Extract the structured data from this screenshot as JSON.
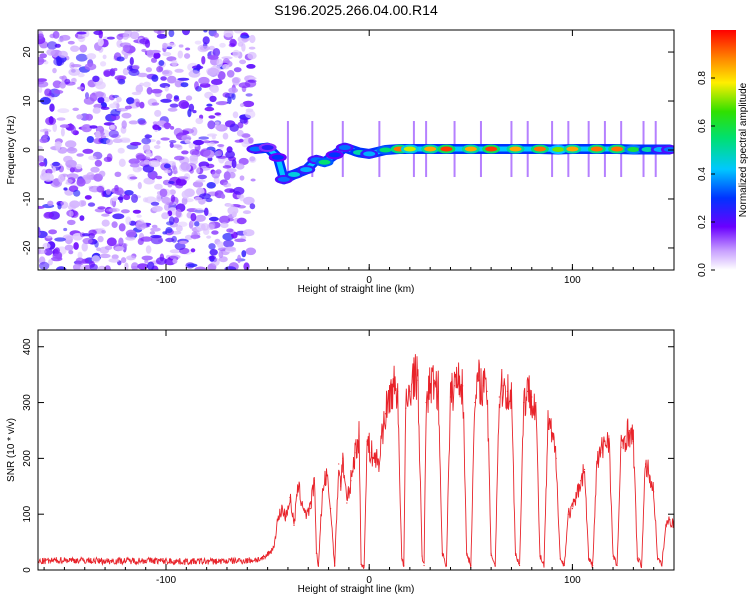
{
  "title": "S196.2025.266.04.00.R14",
  "colors": {
    "snr_line": "#e8232a",
    "noise": "#7a1ff0",
    "frame": "#000000"
  },
  "chart_data": [
    {
      "type": "heatmap",
      "name": "spectrogram",
      "xlabel": "Height of straight line (km)",
      "ylabel": "Frequency (Hz)",
      "xlim": [
        -163,
        150
      ],
      "ylim": [
        -24.5,
        24.5
      ],
      "xticks": [
        -100,
        0,
        100
      ],
      "yticks": [
        -20,
        -10,
        0,
        10,
        20
      ],
      "colorbar": {
        "label": "Normalized spectral amplitude",
        "range": [
          0,
          1
        ],
        "ticks": [
          0.0,
          0.2,
          0.4,
          0.6,
          0.8
        ],
        "tick_labels": [
          "0.0",
          "0.2",
          "0.4",
          "0.6",
          "0.8"
        ],
        "colormap": "rainbow"
      },
      "noise_region_x": [
        -163,
        -57
      ],
      "carrier_track": [
        {
          "x": -56,
          "f": 0.2,
          "amp": 0.35
        },
        {
          "x": -50,
          "f": 0.5,
          "amp": 0.25
        },
        {
          "x": -45,
          "f": -1.5,
          "amp": 0.3
        },
        {
          "x": -42,
          "f": -6.0,
          "amp": 0.35
        },
        {
          "x": -37,
          "f": -5.0,
          "amp": 0.45
        },
        {
          "x": -31,
          "f": -4.0,
          "amp": 0.4
        },
        {
          "x": -26,
          "f": -2.0,
          "amp": 0.35
        },
        {
          "x": -22,
          "f": -2.5,
          "amp": 0.55
        },
        {
          "x": -17,
          "f": -1.0,
          "amp": 0.3
        },
        {
          "x": -12,
          "f": 0.5,
          "amp": 0.35
        },
        {
          "x": -5,
          "f": -0.5,
          "amp": 0.5
        },
        {
          "x": 0,
          "f": -0.8,
          "amp": 0.4
        },
        {
          "x": 8,
          "f": 0.0,
          "amp": 0.55
        },
        {
          "x": 15,
          "f": 0.2,
          "amp": 0.9
        },
        {
          "x": 20,
          "f": 0.2,
          "amp": 0.75
        },
        {
          "x": 30,
          "f": 0.2,
          "amp": 0.85
        },
        {
          "x": 38,
          "f": 0.2,
          "amp": 0.95
        },
        {
          "x": 50,
          "f": 0.2,
          "amp": 0.85
        },
        {
          "x": 60,
          "f": 0.2,
          "amp": 0.95
        },
        {
          "x": 72,
          "f": 0.2,
          "amp": 0.85
        },
        {
          "x": 84,
          "f": 0.2,
          "amp": 0.9
        },
        {
          "x": 93,
          "f": 0.1,
          "amp": 0.7
        },
        {
          "x": 100,
          "f": 0.2,
          "amp": 0.85
        },
        {
          "x": 112,
          "f": 0.2,
          "amp": 0.9
        },
        {
          "x": 122,
          "f": 0.2,
          "amp": 0.9
        },
        {
          "x": 130,
          "f": 0.1,
          "amp": 0.6
        },
        {
          "x": 137,
          "f": 0.1,
          "amp": 0.5
        },
        {
          "x": 143,
          "f": 0.1,
          "amp": 0.4
        },
        {
          "x": 148,
          "f": 0.1,
          "amp": 0.35
        }
      ],
      "sidelobes_x": [
        -40,
        -28,
        -13,
        5,
        22,
        28,
        42,
        55,
        70,
        78,
        90,
        98,
        108,
        116,
        124,
        135,
        141
      ]
    },
    {
      "type": "line",
      "name": "snr",
      "xlabel": "Height of straight line (km)",
      "ylabel": "SNR (10 * v/v)",
      "xlim": [
        -163,
        150
      ],
      "ylim": [
        0,
        430
      ],
      "xticks": [
        -100,
        0,
        100
      ],
      "yticks": [
        0,
        100,
        200,
        300,
        400
      ],
      "series": [
        {
          "name": "SNR",
          "x": [
            -163,
            -150,
            -130,
            -110,
            -90,
            -70,
            -60,
            -52,
            -47,
            -45,
            -43,
            -41,
            -39,
            -37,
            -35,
            -33,
            -31,
            -29,
            -27,
            -26,
            -25,
            -23,
            -21,
            -19,
            -17,
            -15,
            -14,
            -13,
            -11,
            -9,
            -7,
            -5,
            -4,
            -3,
            -1,
            1,
            3,
            5,
            -2.5,
            6,
            8,
            10,
            12,
            14,
            16,
            17,
            18,
            20,
            22,
            24,
            26,
            27,
            28,
            30,
            32,
            34,
            36,
            38,
            40,
            42,
            44,
            46,
            48,
            50,
            52,
            54,
            56,
            58,
            60,
            62,
            64,
            66,
            68,
            70,
            72,
            74,
            76,
            78,
            80,
            82,
            84,
            86,
            88,
            90,
            92,
            94,
            96,
            98,
            100,
            102,
            104,
            106,
            108,
            110,
            112,
            114,
            116,
            118,
            120,
            122,
            124,
            126,
            128,
            130,
            132,
            134,
            136,
            138,
            140,
            142,
            144,
            146,
            148,
            150
          ],
          "values": [
            15,
            18,
            16,
            17,
            15,
            16,
            17,
            20,
            40,
            90,
            110,
            95,
            130,
            80,
            150,
            120,
            100,
            110,
            160,
            30,
            8,
            140,
            170,
            110,
            8,
            190,
            150,
            200,
            120,
            160,
            210,
            240,
            10,
            8,
            230,
            210,
            200,
            190,
            8,
            240,
            280,
            310,
            330,
            320,
            20,
            8,
            290,
            320,
            350,
            340,
            25,
            8,
            300,
            330,
            340,
            320,
            30,
            8,
            310,
            330,
            350,
            330,
            30,
            8,
            300,
            340,
            330,
            320,
            30,
            8,
            310,
            330,
            320,
            310,
            30,
            8,
            300,
            320,
            310,
            300,
            25,
            8,
            260,
            240,
            200,
            20,
            8,
            100,
            110,
            130,
            160,
            180,
            20,
            8,
            190,
            210,
            230,
            240,
            25,
            8,
            220,
            240,
            250,
            230,
            20,
            8,
            190,
            170,
            140,
            20,
            8,
            80,
            90,
            80
          ]
        }
      ]
    }
  ]
}
